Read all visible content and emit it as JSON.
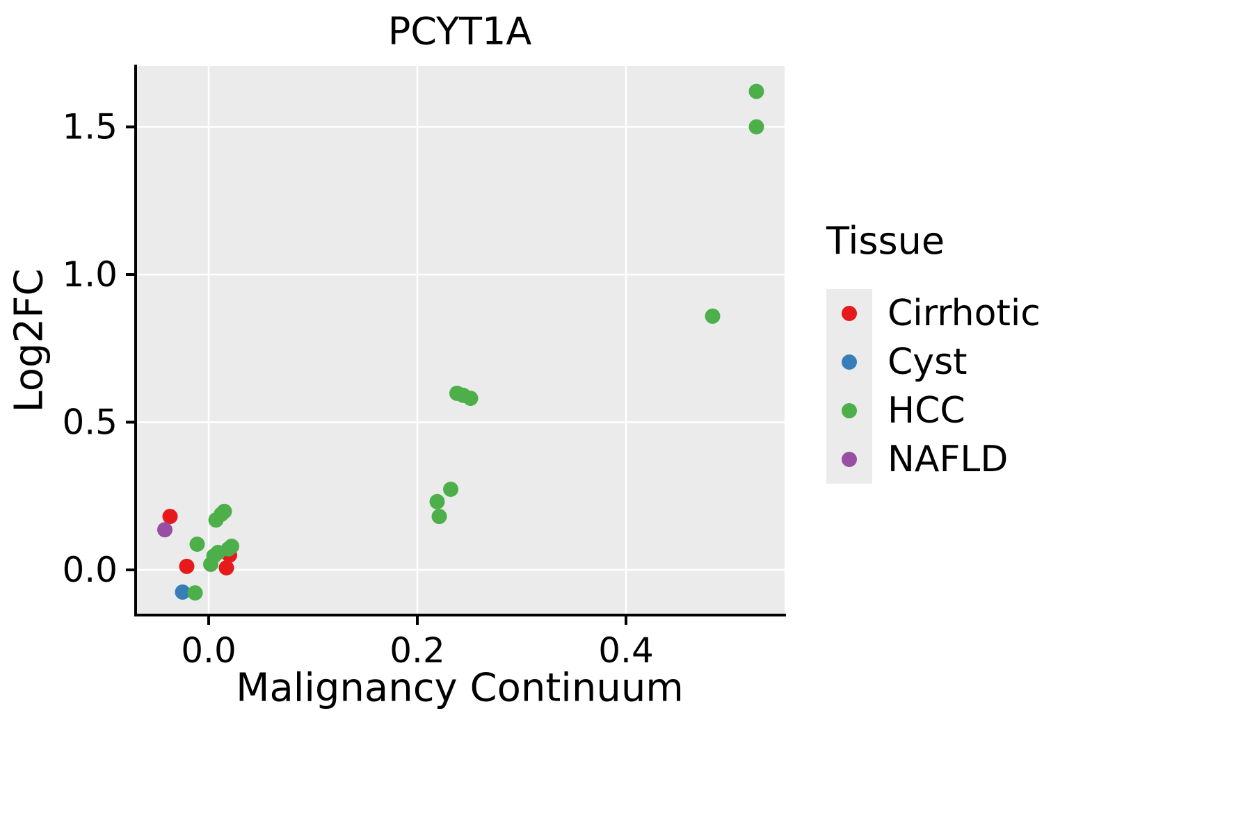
{
  "chart_data": {
    "type": "scatter",
    "title": "PCYT1A",
    "xlabel": "Malignancy Continuum",
    "ylabel": "Log2FC",
    "xlim": [
      -0.07,
      0.552
    ],
    "ylim": [
      -0.153,
      1.706
    ],
    "xticks": [
      0.0,
      0.2,
      0.4
    ],
    "xtick_labels": [
      "0.0",
      "0.2",
      "0.4"
    ],
    "yticks": [
      0.0,
      0.5,
      1.0,
      1.5
    ],
    "ytick_labels": [
      "0.0",
      "0.5",
      "1.0",
      "1.5"
    ],
    "grid": true,
    "panel_bg": "#EBEBEB",
    "grid_color": "#FFFFFF",
    "point_radius": 11,
    "legend": {
      "title": "Tissue",
      "position": "right"
    },
    "series": [
      {
        "name": "Cirrhotic",
        "color": "#E41A1C",
        "points": [
          [
            -0.037,
            0.181
          ],
          [
            -0.021,
            0.012
          ],
          [
            0.017,
            0.007
          ],
          [
            0.02,
            0.05
          ]
        ]
      },
      {
        "name": "Cyst",
        "color": "#377EB8",
        "points": [
          [
            -0.025,
            -0.075
          ]
        ]
      },
      {
        "name": "HCC",
        "color": "#4DAF4A",
        "points": [
          [
            -0.013,
            -0.078
          ],
          [
            -0.011,
            0.087
          ],
          [
            0.002,
            0.019
          ],
          [
            0.005,
            0.047
          ],
          [
            0.009,
            0.059
          ],
          [
            0.007,
            0.169
          ],
          [
            0.012,
            0.188
          ],
          [
            0.015,
            0.198
          ],
          [
            0.019,
            0.071
          ],
          [
            0.022,
            0.08
          ],
          [
            0.219,
            0.231
          ],
          [
            0.221,
            0.181
          ],
          [
            0.232,
            0.273
          ],
          [
            0.238,
            0.598
          ],
          [
            0.244,
            0.591
          ],
          [
            0.251,
            0.581
          ],
          [
            0.483,
            0.859
          ],
          [
            0.525,
            1.62
          ],
          [
            0.525,
            1.5
          ]
        ]
      },
      {
        "name": "NAFLD",
        "color": "#984EA3",
        "points": [
          [
            -0.042,
            0.136
          ]
        ]
      }
    ]
  }
}
